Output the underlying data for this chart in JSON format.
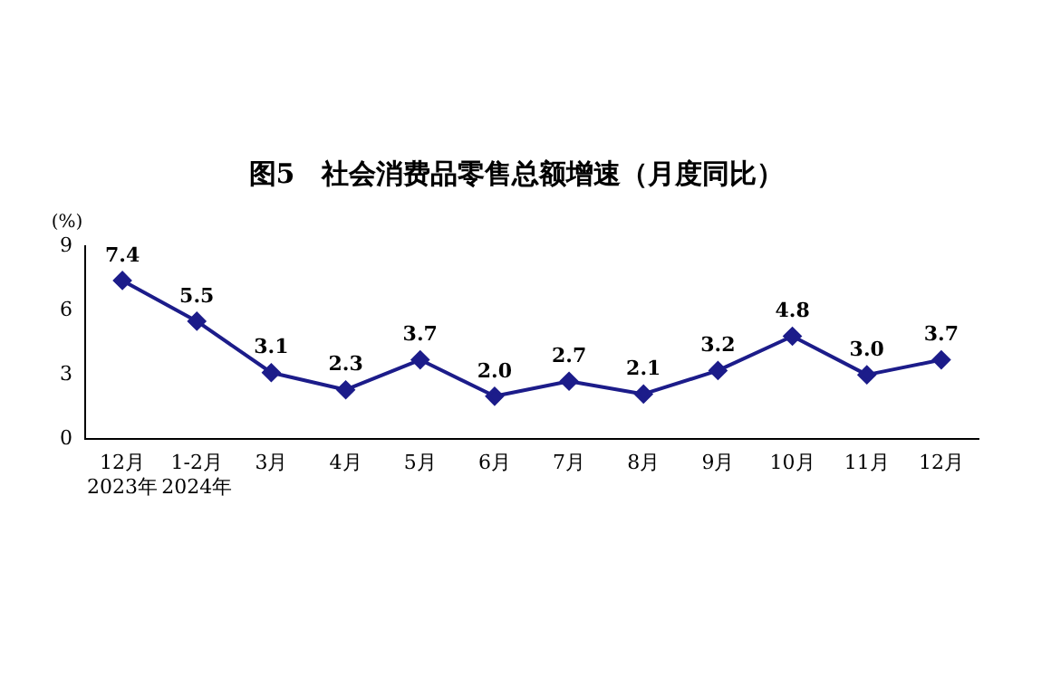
{
  "chart_data": {
    "type": "line",
    "title": "图5　社会消费品零售总额增速（月度同比）",
    "ylabel": "(%)",
    "categories": [
      "12月\n2023年",
      "1-2月\n2024年",
      "3月",
      "4月",
      "5月",
      "6月",
      "7月",
      "8月",
      "9月",
      "10月",
      "11月",
      "12月"
    ],
    "series": [
      {
        "color": "#1c1c8a",
        "values": [
          7.4,
          5.5,
          3.1,
          2.3,
          3.7,
          2.0,
          2.7,
          2.1,
          3.2,
          4.8,
          3.0,
          3.7
        ],
        "value_labels": [
          "7.4",
          "5.5",
          "3.1",
          "2.3",
          "3.7",
          "2.0",
          "2.7",
          "2.1",
          "3.2",
          "4.8",
          "3.0",
          "3.7"
        ]
      }
    ],
    "ylim": [
      0,
      9
    ],
    "yticks": [
      0,
      3,
      6,
      9
    ],
    "grid": false,
    "legend": false,
    "marker": "diamond",
    "line_style": "solid"
  }
}
